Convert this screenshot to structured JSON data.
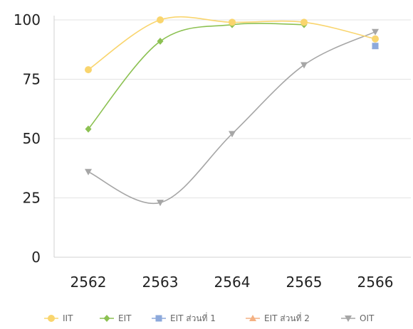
{
  "chart_data": {
    "type": "line",
    "categories": [
      "2562",
      "2563",
      "2564",
      "2565",
      "2566"
    ],
    "ylim": [
      0,
      100
    ],
    "yticks": [
      "0",
      "25",
      "50",
      "75",
      "100"
    ],
    "grid": true,
    "legend_position": "bottom",
    "series": [
      {
        "name": "IIT",
        "color": "#F9D56E",
        "marker": "circle",
        "values": [
          79,
          100,
          99,
          99,
          92
        ]
      },
      {
        "name": "EIT",
        "color": "#8CC152",
        "marker": "diamond",
        "values": [
          54,
          91,
          98,
          98,
          null
        ]
      },
      {
        "name": "EIT ส่วนที่ 1",
        "color": "#8DA9DB",
        "marker": "square",
        "values": [
          null,
          null,
          null,
          null,
          89
        ]
      },
      {
        "name": "EIT ส่วนที่ 2",
        "color": "#F4B183",
        "marker": "triangle-up",
        "values": [
          null,
          null,
          null,
          null,
          89
        ]
      },
      {
        "name": "OIT",
        "color": "#A6A6A6",
        "marker": "triangle-down",
        "values": [
          36,
          23,
          52,
          81,
          95
        ]
      }
    ]
  }
}
